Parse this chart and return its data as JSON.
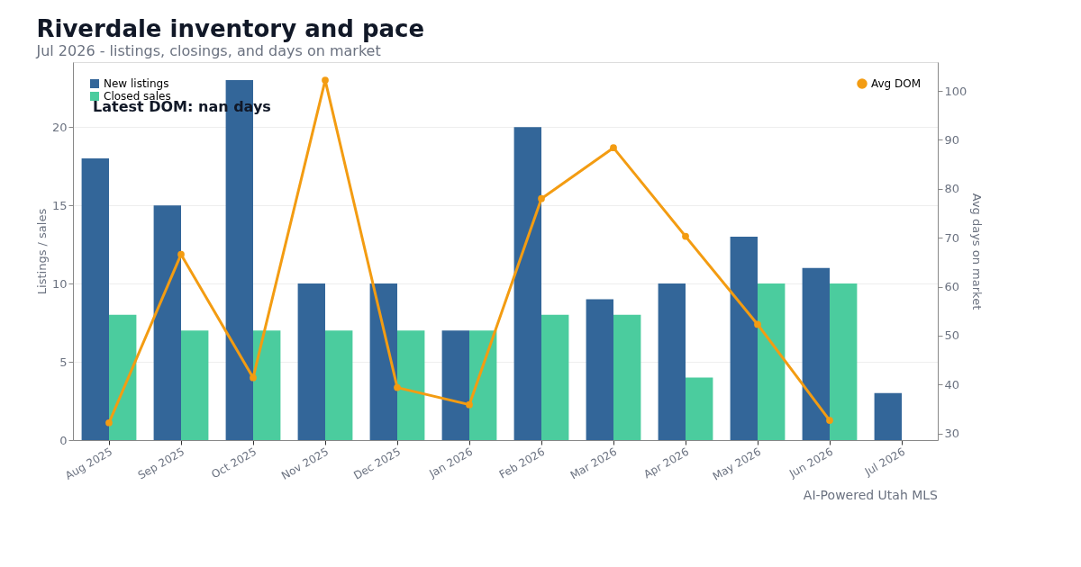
{
  "chart_data": {
    "type": "bar",
    "title": "Riverdale inventory and pace",
    "subtitle": "Jul 2026 - listings, closings, and days on market",
    "ylabel": "Listings / sales",
    "y2label": "Avg days on market",
    "categories": [
      "Aug 2025",
      "Sep 2025",
      "Oct 2025",
      "Nov 2025",
      "Dec 2025",
      "Jan 2026",
      "Feb 2026",
      "Mar 2026",
      "Apr 2026",
      "May 2026",
      "Jun 2026",
      "Jul 2026"
    ],
    "series": [
      {
        "name": "New listings",
        "color": "#336699",
        "values": [
          18,
          15,
          23,
          10,
          10,
          7,
          20,
          9,
          10,
          13,
          11,
          3
        ]
      },
      {
        "name": "Closed sales",
        "color": "#4bcc9e",
        "values": [
          8,
          7,
          7,
          7,
          7,
          7,
          8,
          8,
          4,
          10,
          10,
          null
        ]
      },
      {
        "name": "Avg DOM",
        "type": "line",
        "axis": "y2",
        "color": "#f39c12",
        "values": [
          32.2,
          66.6,
          41.4,
          102.2,
          39.4,
          35.9,
          78.0,
          88.4,
          70.3,
          52.3,
          32.7,
          null
        ]
      }
    ],
    "ylim": [
      0,
      24.15
    ],
    "yticks": [
      0,
      5,
      10,
      15,
      20
    ],
    "y2lim": [
      28.66,
      105.9
    ],
    "y2ticks": [
      30,
      40,
      50,
      60,
      70,
      80,
      90,
      100
    ],
    "grid": "y",
    "marker": "circle",
    "line_style": "solid",
    "legend": "top",
    "annotations": [
      "Latest DOM: nan days",
      "AI-Powered Utah MLS"
    ]
  }
}
